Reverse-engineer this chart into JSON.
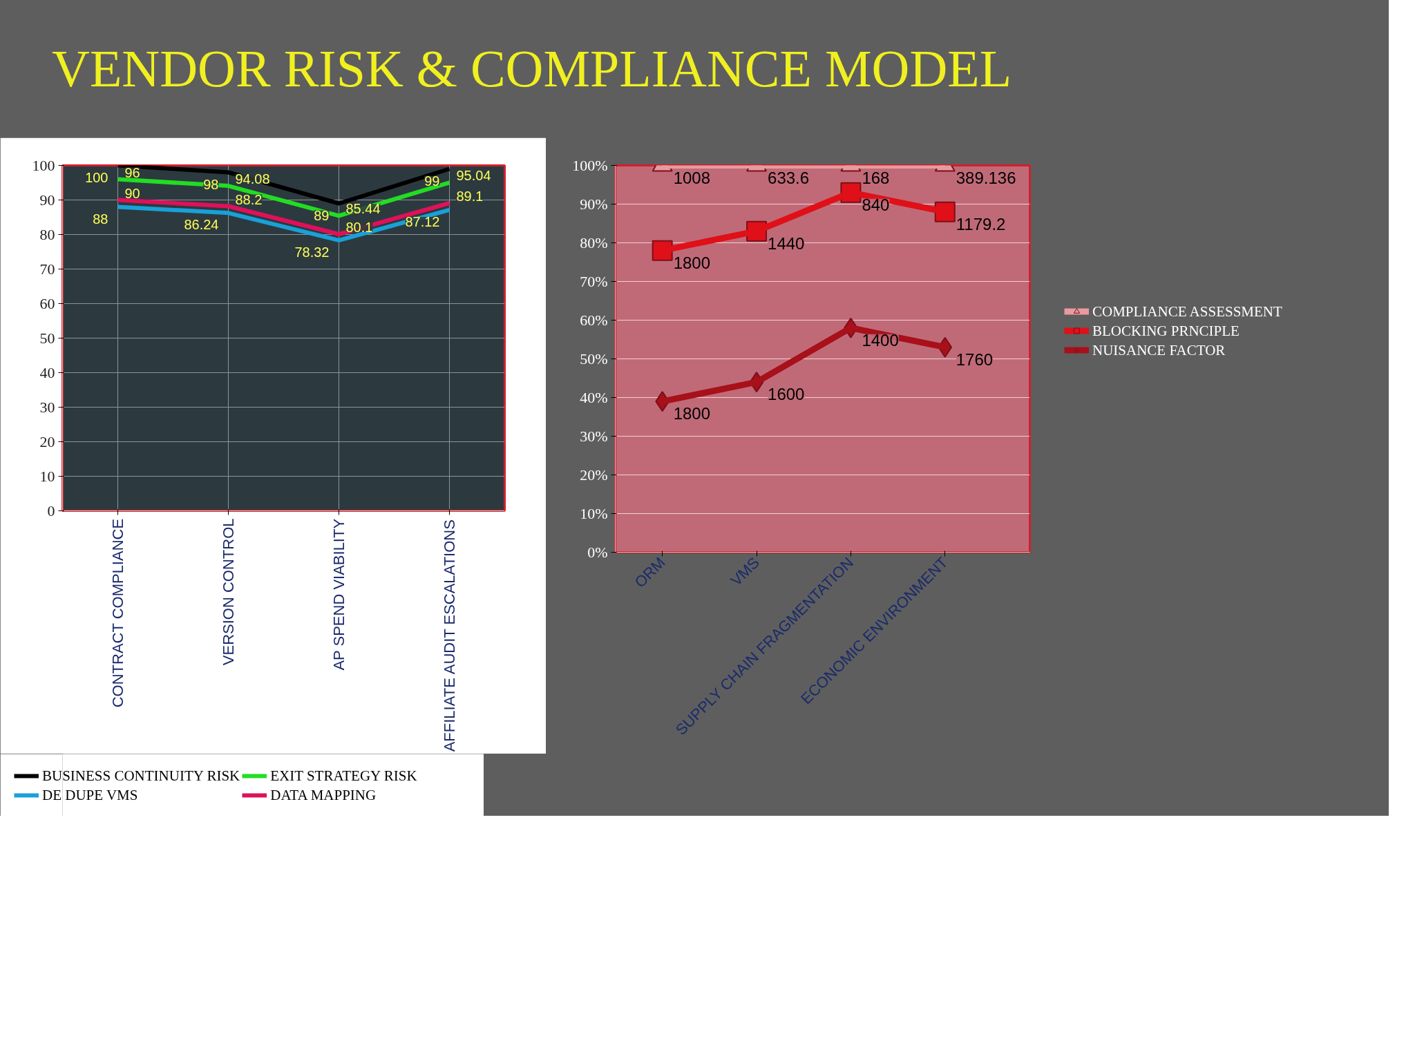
{
  "chart_data": [
    {
      "type": "line",
      "title": "VENDOR RISK & COMPLIANCE MODEL",
      "categories": [
        "CONTRACT COMPLIANCE",
        "VERSION CONTROL",
        "AP SPEND VIABILITY",
        "AFFILIATE AUDIT ESCALATIONS"
      ],
      "ylim": [
        0,
        100
      ],
      "yticks": [
        0,
        10,
        20,
        30,
        40,
        50,
        60,
        70,
        80,
        90,
        100
      ],
      "grid": true,
      "legend": "bottom",
      "data_labels": true,
      "marker": "none",
      "series": [
        {
          "name": "BUSINESS CONTINUITY RISK",
          "color": "#000000",
          "values": [
            100,
            98,
            89,
            99
          ]
        },
        {
          "name": "DE DUPE VMS",
          "color": "#1aa0d8",
          "values": [
            88,
            86.24,
            78.32,
            87.12
          ]
        },
        {
          "name": "EXIT STRATEGY RISK",
          "color": "#22dd22",
          "values": [
            96,
            94.08,
            85.44,
            95.04
          ]
        },
        {
          "name": "DATA MAPPING",
          "color": "#e0105a",
          "values": [
            90,
            88.2,
            80.1,
            89.1
          ]
        }
      ]
    },
    {
      "type": "line",
      "categories": [
        "ORM",
        "VMS",
        "SUPPLY CHAIN FRAGMENTATION",
        "ECONOMIC ENVIRONMENT"
      ],
      "ylim": [
        0,
        100
      ],
      "yticks": [
        {
          "value": 0,
          "label": "0%"
        },
        {
          "value": 10,
          "label": "10%"
        },
        {
          "value": 20,
          "label": "20%"
        },
        {
          "value": 30,
          "label": "30%"
        },
        {
          "value": 40,
          "label": "40%"
        },
        {
          "value": 50,
          "label": "50%"
        },
        {
          "value": 60,
          "label": "60%"
        },
        {
          "value": 70,
          "label": "70%"
        },
        {
          "value": 80,
          "label": "80%"
        },
        {
          "value": 90,
          "label": "90%"
        },
        {
          "value": 100,
          "label": "100%"
        }
      ],
      "grid": "y",
      "legend": "right",
      "series": [
        {
          "name": "COMPLIANCE ASSESSMENT",
          "color": "#e89aa0",
          "marker": "triangle",
          "values": [
            100,
            100,
            100,
            100
          ]
        },
        {
          "name": "BLOCKING PRNCIPLE",
          "color": "#e01018",
          "marker": "square",
          "values": [
            78,
            83,
            93,
            88
          ]
        },
        {
          "name": "NUISANCE FACTOR",
          "color": "#a8101a",
          "marker": "diamond",
          "values": [
            39,
            44,
            58,
            53
          ]
        }
      ],
      "annotations": [
        {
          "text": "1008",
          "x": "ORM",
          "y": 100
        },
        {
          "text": "633.6",
          "x": "VMS",
          "y": 100
        },
        {
          "text": "168",
          "x": "SUPPLY CHAIN FRAGMENTATION",
          "y": 100
        },
        {
          "text": "389.136",
          "x": "ECONOMIC ENVIRONMENT",
          "y": 100
        },
        {
          "text": "1800",
          "x": "ORM",
          "y": 78
        },
        {
          "text": "1440",
          "x": "VMS",
          "y": 83
        },
        {
          "text": "840",
          "x": "SUPPLY CHAIN FRAGMENTATION",
          "y": 93
        },
        {
          "text": "1179.2",
          "x": "ECONOMIC ENVIRONMENT",
          "y": 88
        },
        {
          "text": "1800",
          "x": "ORM",
          "y": 39
        },
        {
          "text": "1600",
          "x": "VMS",
          "y": 44
        },
        {
          "text": "1400",
          "x": "SUPPLY CHAIN FRAGMENTATION",
          "y": 58
        },
        {
          "text": "1760",
          "x": "ECONOMIC ENVIRONMENT",
          "y": 53
        }
      ]
    }
  ]
}
